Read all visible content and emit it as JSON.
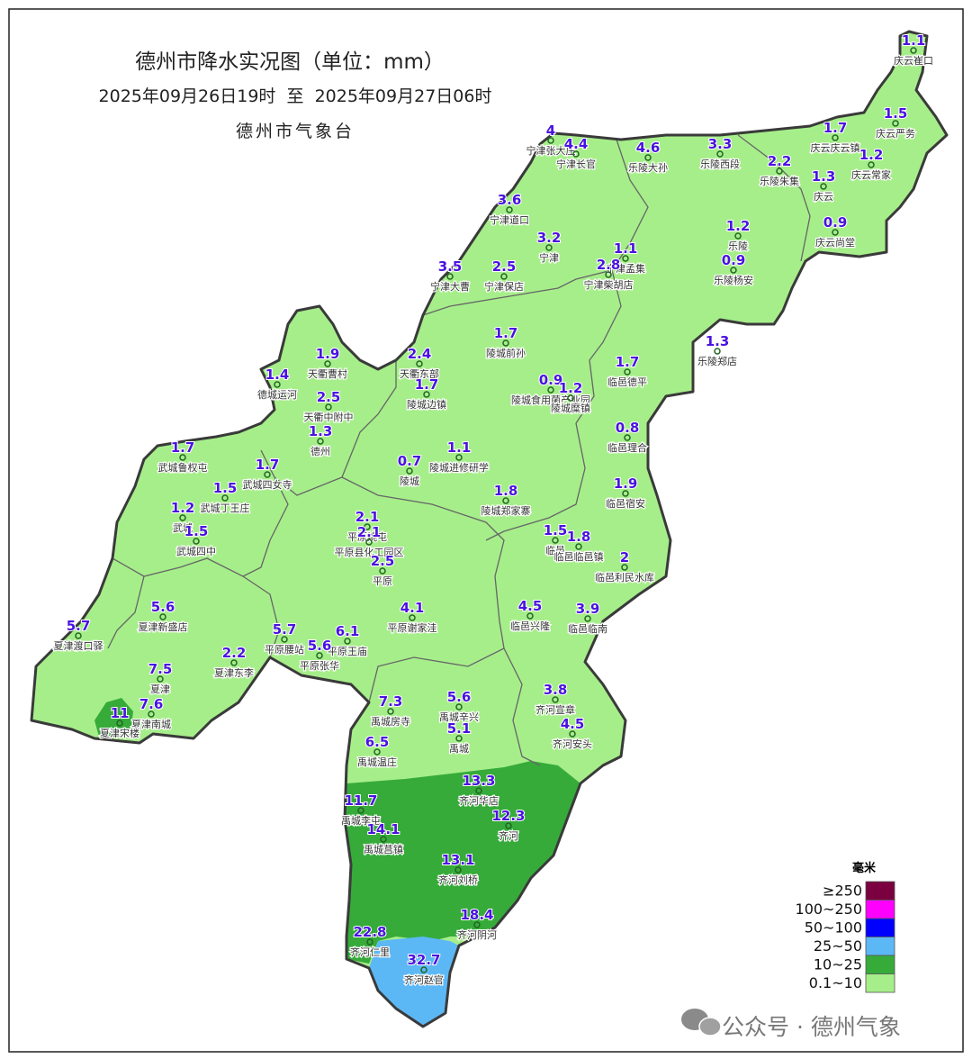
{
  "header": {
    "title": "德州市降水实况图（单位：mm）",
    "subtitle": "2025年09月26日19时  至  2025年09月27日06时",
    "source": "德州市气象台"
  },
  "stations": [
    {
      "name": "庆云崔口",
      "value": 1.1
    },
    {
      "name": "庆云严务",
      "value": 1.5
    },
    {
      "name": "庆云庆云镇",
      "value": 1.7
    },
    {
      "name": "庆云常家",
      "value": 1.2
    },
    {
      "name": "乐陵朱集",
      "value": 2.2
    },
    {
      "name": "庆云",
      "value": 1.3
    },
    {
      "name": "庆云尚堂",
      "value": 0.9
    },
    {
      "name": "宁津张大庄",
      "value": 4
    },
    {
      "name": "宁津长官",
      "value": 4.4
    },
    {
      "name": "乐陵大孙",
      "value": 4.6
    },
    {
      "name": "乐陵西段",
      "value": 3.3
    },
    {
      "name": "宁津道口",
      "value": 3.6
    },
    {
      "name": "宁津",
      "value": 3.2
    },
    {
      "name": "宁津孟集",
      "value": 1.1
    },
    {
      "name": "宁津柴胡店",
      "value": 2.8
    },
    {
      "name": "乐陵",
      "value": 1.2
    },
    {
      "name": "乐陵杨安",
      "value": 0.9
    },
    {
      "name": "宁津大曹",
      "value": 3.5
    },
    {
      "name": "宁津保店",
      "value": 2.5
    },
    {
      "name": "乐陵郑店",
      "value": 1.3
    },
    {
      "name": "陵城前孙",
      "value": 1.7
    },
    {
      "name": "德城运河",
      "value": 1.4
    },
    {
      "name": "天衢曹村",
      "value": 1.9
    },
    {
      "name": "天衢东部",
      "value": 2.4
    },
    {
      "name": "陵城边镇",
      "value": 1.7
    },
    {
      "name": "陵城食用菌产业园",
      "value": 0.9
    },
    {
      "name": "陵城糜镇",
      "value": 1.2
    },
    {
      "name": "临邑德平",
      "value": 1.7
    },
    {
      "name": "天衢中附中",
      "value": 2.5
    },
    {
      "name": "德州",
      "value": 1.3
    },
    {
      "name": "临邑理合",
      "value": 0.8
    },
    {
      "name": "武城鲁权屯",
      "value": 1.7
    },
    {
      "name": "武城四女寺",
      "value": 1.7
    },
    {
      "name": "陵城",
      "value": 0.7
    },
    {
      "name": "陵城进修研学",
      "value": 1.1
    },
    {
      "name": "临邑宿安",
      "value": 1.9
    },
    {
      "name": "武城丁王庄",
      "value": 1.5
    },
    {
      "name": "陵城郑家寨",
      "value": 1.8
    },
    {
      "name": "武城",
      "value": 1.2
    },
    {
      "name": "武城四中",
      "value": 1.5
    },
    {
      "name": "平原姚屯",
      "value": 2.1
    },
    {
      "name": "平原县化工园区",
      "value": 2.1
    },
    {
      "name": "临邑",
      "value": 1.5
    },
    {
      "name": "临邑临邑镇",
      "value": 1.8
    },
    {
      "name": "平原",
      "value": 2.5
    },
    {
      "name": "临邑利民水库",
      "value": 2
    },
    {
      "name": "夏津新盛店",
      "value": 5.6
    },
    {
      "name": "平原谢家洼",
      "value": 4.1
    },
    {
      "name": "临邑兴隆",
      "value": 4.5
    },
    {
      "name": "临邑临南",
      "value": 3.9
    },
    {
      "name": "夏津渡口驿",
      "value": 5.7
    },
    {
      "name": "平原腰站",
      "value": 5.7
    },
    {
      "name": "平原王庙",
      "value": 6.1
    },
    {
      "name": "平原张华",
      "value": 5.6
    },
    {
      "name": "夏津东李",
      "value": 2.2
    },
    {
      "name": "夏津",
      "value": 7.5
    },
    {
      "name": "齐河宣章",
      "value": 3.8
    },
    {
      "name": "夏津南城",
      "value": 7.6
    },
    {
      "name": "夏津宋楼",
      "value": 11
    },
    {
      "name": "禹城房寺",
      "value": 7.3
    },
    {
      "name": "禹城辛兴",
      "value": 5.6
    },
    {
      "name": "禹城",
      "value": 5.1
    },
    {
      "name": "齐河安头",
      "value": 4.5
    },
    {
      "name": "禹城温庄",
      "value": 6.5
    },
    {
      "name": "齐河华店",
      "value": 13.3
    },
    {
      "name": "禹城李屯",
      "value": 11.7
    },
    {
      "name": "齐河",
      "value": 12.3
    },
    {
      "name": "禹城莒镇",
      "value": 14.1
    },
    {
      "name": "齐河刘桥",
      "value": 13.1
    },
    {
      "name": "齐河阴河",
      "value": 18.4
    },
    {
      "name": "齐河仁里",
      "value": 22.8
    },
    {
      "name": "齐河赵官",
      "value": 32.7
    }
  ],
  "legend": {
    "title": "毫米",
    "items": [
      {
        "label": "≥250",
        "color": "#7a0040"
      },
      {
        "label": "100~250",
        "color": "#ff00ff"
      },
      {
        "label": "50~100",
        "color": "#0000ff"
      },
      {
        "label": "25~50",
        "color": "#5cb8f5"
      },
      {
        "label": "10~25",
        "color": "#36ab3a"
      },
      {
        "label": "0.1~10",
        "color": "#a6ee8a"
      }
    ]
  },
  "watermark": "公众号 · 德州气象"
}
